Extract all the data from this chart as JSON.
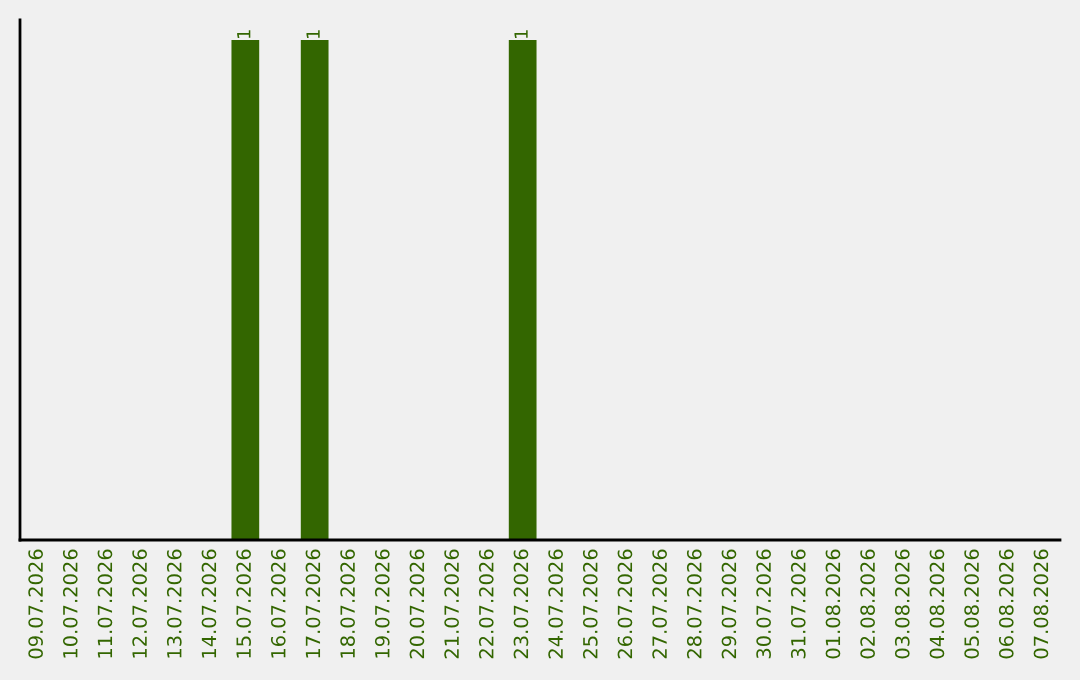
{
  "chart_data": {
    "type": "bar",
    "categories": [
      "09.07.2026",
      "10.07.2026",
      "11.07.2026",
      "12.07.2026",
      "13.07.2026",
      "14.07.2026",
      "15.07.2026",
      "16.07.2026",
      "17.07.2026",
      "18.07.2026",
      "19.07.2026",
      "20.07.2026",
      "21.07.2026",
      "22.07.2026",
      "23.07.2026",
      "24.07.2026",
      "25.07.2026",
      "26.07.2026",
      "27.07.2026",
      "28.07.2026",
      "29.07.2026",
      "30.07.2026",
      "31.07.2026",
      "01.08.2026",
      "02.08.2026",
      "03.08.2026",
      "04.08.2026",
      "05.08.2026",
      "06.08.2026",
      "07.08.2026"
    ],
    "values": [
      0,
      0,
      0,
      0,
      0,
      0,
      1,
      0,
      1,
      0,
      0,
      0,
      0,
      0,
      1,
      0,
      0,
      0,
      0,
      0,
      0,
      0,
      0,
      0,
      0,
      0,
      0,
      0,
      0,
      0
    ],
    "value_labels": [
      null,
      null,
      null,
      null,
      null,
      null,
      "1",
      null,
      "1",
      null,
      null,
      null,
      null,
      null,
      "1",
      null,
      null,
      null,
      null,
      null,
      null,
      null,
      null,
      null,
      null,
      null,
      null,
      null,
      null,
      null
    ],
    "color": "#336600",
    "ylim": [
      0,
      1.04
    ],
    "tick_labels": "x",
    "grid": false,
    "legend": false
  }
}
